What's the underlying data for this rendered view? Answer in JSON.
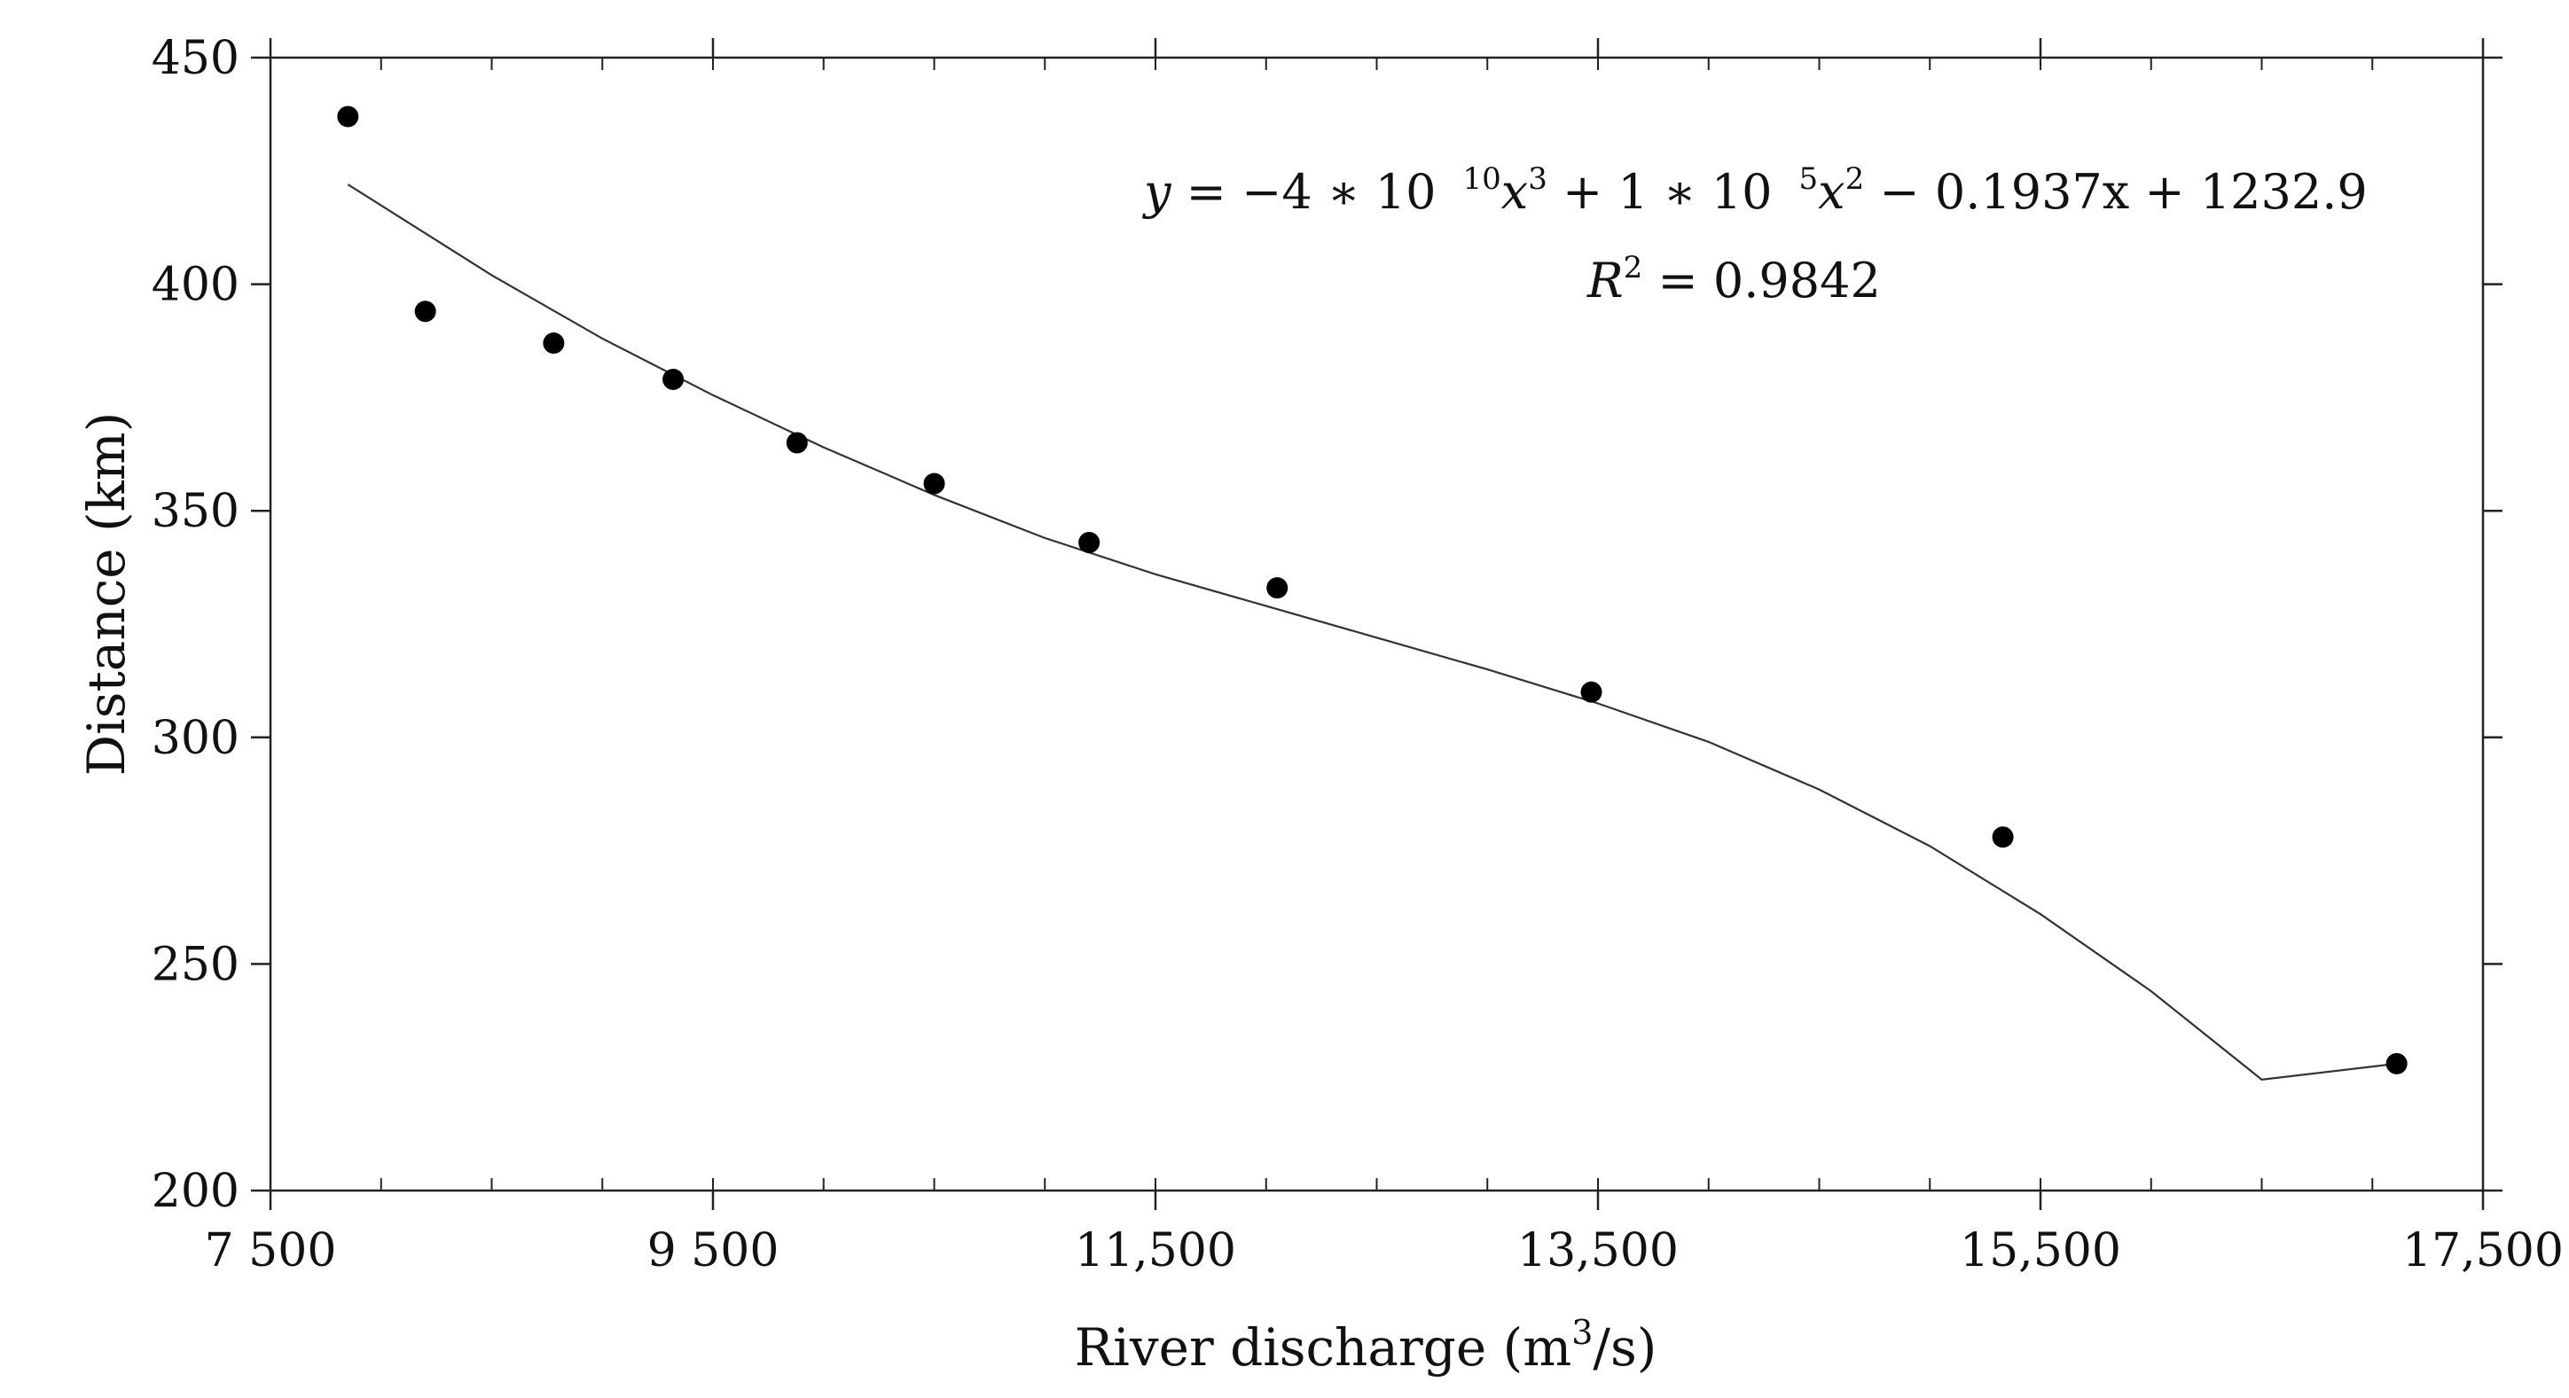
{
  "chart_data": {
    "type": "scatter",
    "title": "",
    "xlabel": "River discharge (m3/s)",
    "xlabel_parts": {
      "main": "River discharge (m",
      "superscript": "3",
      "tail": "/s)"
    },
    "ylabel": "Distance (km)",
    "xlim": [
      7500,
      17500
    ],
    "ylim": [
      200,
      450
    ],
    "x_ticks": [
      {
        "value": 7500,
        "label": "7 500"
      },
      {
        "value": 9500,
        "label": "9 500"
      },
      {
        "value": 11500,
        "label": "11,500"
      },
      {
        "value": 13500,
        "label": "13,500"
      },
      {
        "value": 15500,
        "label": "15,500"
      },
      {
        "value": 17500,
        "label": "17,500"
      }
    ],
    "y_ticks": [
      {
        "value": 200,
        "label": "200"
      },
      {
        "value": 250,
        "label": "250"
      },
      {
        "value": 300,
        "label": "300"
      },
      {
        "value": 350,
        "label": "350"
      },
      {
        "value": 400,
        "label": "400"
      },
      {
        "value": 450,
        "label": "450"
      }
    ],
    "x_minor_step": 500,
    "grid": false,
    "series": [
      {
        "type": "scatter",
        "x": [
          7850,
          8200,
          8780,
          9320,
          9880,
          10500,
          11200,
          12050,
          13470,
          15330,
          17110
        ],
        "y": [
          437,
          394,
          387,
          379,
          365,
          356,
          343,
          333,
          310,
          278,
          228
        ]
      },
      {
        "type": "line",
        "x": [
          7850,
          8500,
          9000,
          9500,
          10000,
          10500,
          11000,
          11500,
          12000,
          12500,
          13000,
          13500,
          14000,
          14500,
          15000,
          15500,
          16000,
          16500,
          17110
        ],
        "y": [
          422,
          402,
          388,
          375.5,
          364,
          353.5,
          344,
          336,
          329,
          322,
          315,
          307.5,
          299,
          288.5,
          276,
          261,
          244,
          224.5,
          228
        ]
      }
    ],
    "annotations": {
      "equation": {
        "y": "y",
        "eq": " = −4 ∗ 10",
        "exp1": "10",
        "x3": "x",
        "exp3": "3",
        "mid": " + 1 ∗ 10",
        "exp2": "5",
        "x2": "x",
        "exp2b": "2",
        "tail": " − 0.1937x + 1232.9"
      },
      "r2": {
        "r": "R",
        "exp": "2",
        "tail": " = 0.9842"
      }
    }
  }
}
